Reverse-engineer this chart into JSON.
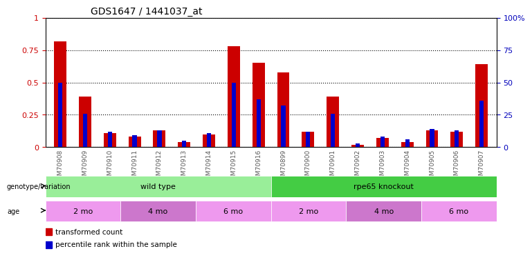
{
  "title": "GDS1647 / 1441037_at",
  "samples": [
    "GSM70908",
    "GSM70909",
    "GSM70910",
    "GSM70911",
    "GSM70912",
    "GSM70913",
    "GSM70914",
    "GSM70915",
    "GSM70916",
    "GSM70899",
    "GSM70900",
    "GSM70901",
    "GSM70902",
    "GSM70903",
    "GSM70904",
    "GSM70905",
    "GSM70906",
    "GSM70907"
  ],
  "transformed_count": [
    0.82,
    0.39,
    0.11,
    0.08,
    0.13,
    0.04,
    0.1,
    0.78,
    0.65,
    0.58,
    0.12,
    0.39,
    0.02,
    0.07,
    0.04,
    0.13,
    0.12,
    0.64
  ],
  "percentile_rank": [
    0.5,
    0.26,
    0.12,
    0.09,
    0.13,
    0.05,
    0.11,
    0.5,
    0.37,
    0.32,
    0.12,
    0.26,
    0.03,
    0.08,
    0.06,
    0.14,
    0.13,
    0.36
  ],
  "bar_color_red": "#cc0000",
  "bar_color_blue": "#0000cc",
  "ylim_left": [
    0,
    1.0
  ],
  "ylim_right": [
    0,
    100
  ],
  "yticks_left": [
    0,
    0.25,
    0.5,
    0.75,
    1.0
  ],
  "yticks_right": [
    0,
    25,
    50,
    75,
    100
  ],
  "genotype_groups": [
    {
      "label": "wild type",
      "start": 0,
      "end": 9,
      "color": "#99ee99"
    },
    {
      "label": "rpe65 knockout",
      "start": 9,
      "end": 18,
      "color": "#44cc44"
    }
  ],
  "age_groups": [
    {
      "label": "2 mo",
      "start": 0,
      "end": 3,
      "color": "#ee99ee"
    },
    {
      "label": "4 mo",
      "start": 3,
      "end": 6,
      "color": "#cc77cc"
    },
    {
      "label": "6 mo",
      "start": 6,
      "end": 9,
      "color": "#ee99ee"
    },
    {
      "label": "2 mo",
      "start": 9,
      "end": 12,
      "color": "#ee99ee"
    },
    {
      "label": "4 mo",
      "start": 12,
      "end": 15,
      "color": "#cc77cc"
    },
    {
      "label": "6 mo",
      "start": 15,
      "end": 18,
      "color": "#ee99ee"
    }
  ],
  "legend_items": [
    {
      "label": "transformed count",
      "color": "#cc0000"
    },
    {
      "label": "percentile rank within the sample",
      "color": "#0000cc"
    }
  ],
  "bg_color": "#ffffff",
  "bar_width": 0.5,
  "grid_color": "#000000",
  "xticklabel_color": "#555555",
  "yticklabel_color_left": "#cc0000",
  "yticklabel_color_right": "#0000bb"
}
